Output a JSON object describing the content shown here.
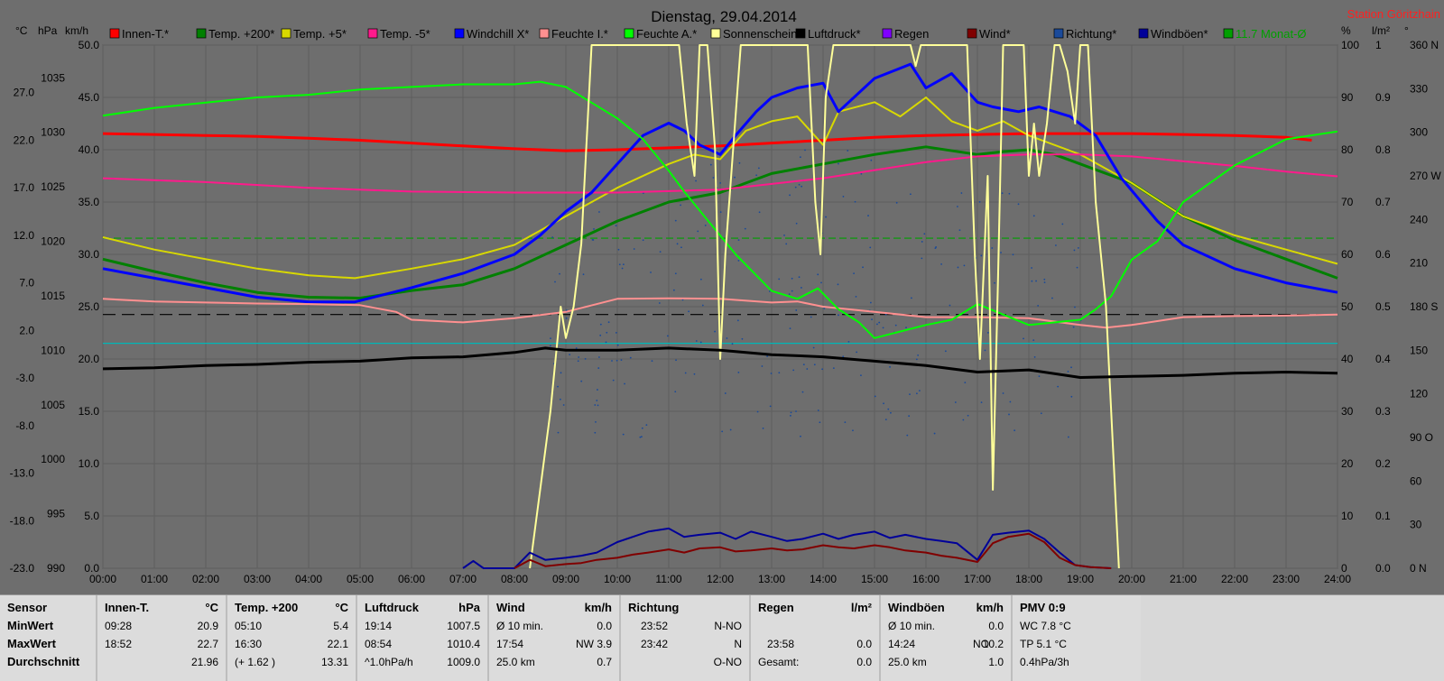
{
  "title": "Dienstag, 29.04.2014",
  "station": "Station Göritzhain",
  "axis_units": {
    "temp": "°C",
    "pressure": "hPa",
    "wind": "km/h",
    "percent": "%",
    "rain": "l/m²",
    "direction": "°"
  },
  "legend": [
    {
      "label": "Innen-T.*",
      "color": "#ff0000"
    },
    {
      "label": "Temp. +200*",
      "color": "#008000"
    },
    {
      "label": "Temp. +5*",
      "color": "#d8d800"
    },
    {
      "label": "Temp. -5*",
      "color": "#ff1a8c"
    },
    {
      "label": "Windchill X*",
      "color": "#0000ff"
    },
    {
      "label": "Feuchte I.*",
      "color": "#ff9090"
    },
    {
      "label": "Feuchte A.*",
      "color": "#00ff00"
    },
    {
      "label": "Sonnenschein",
      "color": "#ffff99"
    },
    {
      "label": "Luftdruck*",
      "color": "#000000"
    },
    {
      "label": "Regen",
      "color": "#8000ff"
    },
    {
      "label": "Wind*",
      "color": "#800000"
    },
    {
      "label": "Richtung*",
      "color": "#1a4a9a"
    },
    {
      "label": "Windböen*",
      "color": "#000099"
    },
    {
      "label": "11.7 Monat-Ø",
      "color": "#00a000"
    }
  ],
  "chart_data": {
    "type": "line",
    "title": "Dienstag, 29.04.2014",
    "x_ticks": [
      "00:00",
      "01:00",
      "02:00",
      "03:00",
      "04:00",
      "05:00",
      "06:00",
      "07:00",
      "08:00",
      "09:00",
      "10:00",
      "11:00",
      "12:00",
      "13:00",
      "14:00",
      "15:00",
      "16:00",
      "17:00",
      "18:00",
      "19:00",
      "20:00",
      "21:00",
      "22:00",
      "23:00",
      "24:00"
    ],
    "xlim": [
      0,
      24
    ],
    "axes": {
      "temp": {
        "ticks": [
          "27.0",
          "22.0",
          "17.0",
          "12.0",
          "7.0",
          "2.0",
          "-3.0",
          "-8.0",
          "-13.0",
          "-18.0",
          "-23.0"
        ],
        "range": [
          -23,
          32
        ]
      },
      "pressure": {
        "ticks": [
          "1035",
          "1030",
          "1025",
          "1020",
          "1015",
          "1010",
          "1005",
          "1000",
          "995",
          "990"
        ],
        "range": [
          990,
          1038
        ]
      },
      "wind": {
        "ticks": [
          "50.0",
          "45.0",
          "40.0",
          "35.0",
          "30.0",
          "25.0",
          "20.0",
          "15.0",
          "10.0",
          "5.0",
          "0.0"
        ],
        "range": [
          0,
          50
        ]
      },
      "percent": {
        "ticks": [
          "100",
          "90",
          "80",
          "70",
          "60",
          "50",
          "40",
          "30",
          "20",
          "10",
          "0"
        ],
        "range": [
          0,
          100
        ]
      },
      "rain": {
        "ticks": [
          "1",
          "0.9",
          "0.8",
          "0.7",
          "0.6",
          "0.5",
          "0.4",
          "0.3",
          "0.2",
          "0.1",
          "0.0"
        ],
        "range": [
          0,
          1
        ]
      },
      "direction": {
        "ticks": [
          "360 N",
          "330",
          "300",
          "270 W",
          "240",
          "210",
          "180 S",
          "150",
          "120",
          "90 O",
          "60",
          "30",
          "0 N"
        ],
        "range": [
          0,
          360
        ]
      }
    },
    "ref_lines": [
      {
        "axis": "temp",
        "value": 11.7,
        "color": "#00a000",
        "dash": "8,4"
      },
      {
        "axis": "percent",
        "value": 48.5,
        "color": "#000000",
        "dash": "14,7"
      },
      {
        "axis": "percent",
        "value": 43.0,
        "color": "#00b8b8",
        "dash": ""
      }
    ],
    "series": [
      {
        "name": "Innen-T.*",
        "axis": "temp",
        "color": "#ff0000",
        "width": 3,
        "x": [
          0,
          1,
          2,
          3,
          4,
          5,
          6,
          7,
          8,
          9,
          10,
          11,
          12,
          13,
          14,
          15,
          16,
          17,
          18,
          19,
          20,
          21,
          22,
          23,
          23.5
        ],
        "y": [
          22.7,
          22.6,
          22.5,
          22.4,
          22.2,
          22.0,
          21.7,
          21.4,
          21.1,
          20.9,
          21.0,
          21.2,
          21.4,
          21.7,
          22.0,
          22.3,
          22.5,
          22.6,
          22.7,
          22.7,
          22.7,
          22.6,
          22.5,
          22.3,
          22.0
        ]
      },
      {
        "name": "Temp. +200*",
        "axis": "temp",
        "color": "#008000",
        "width": 3,
        "x": [
          0,
          1,
          2,
          3,
          4,
          5,
          6,
          7,
          8,
          9,
          10,
          11,
          12,
          12.5,
          13,
          14,
          15,
          16,
          17,
          17.5,
          18,
          18.5,
          19,
          20,
          21,
          22,
          23,
          24
        ],
        "y": [
          9.5,
          8.2,
          7.0,
          6.0,
          5.5,
          5.4,
          6.2,
          6.8,
          8.5,
          11.0,
          13.5,
          15.5,
          16.5,
          17.5,
          18.5,
          19.5,
          20.5,
          21.3,
          20.5,
          20.8,
          21.0,
          20.5,
          19.5,
          17.5,
          14.0,
          11.5,
          9.5,
          7.5
        ]
      },
      {
        "name": "Temp. +5*",
        "axis": "temp",
        "color": "#d8d800",
        "width": 2,
        "x": [
          0,
          1,
          2,
          3,
          4,
          4.9,
          6,
          7,
          8,
          9,
          10,
          11,
          11.5,
          12,
          12.5,
          13,
          13.5,
          14,
          14.3,
          15,
          15.5,
          16,
          16.5,
          17,
          17.5,
          18,
          19,
          20,
          21,
          22,
          23,
          24
        ],
        "y": [
          11.8,
          10.5,
          9.5,
          8.5,
          7.8,
          7.5,
          8.5,
          9.5,
          11.0,
          14.0,
          17.0,
          19.5,
          20.5,
          20.0,
          23.0,
          24.0,
          24.5,
          21.5,
          25.0,
          26.0,
          24.5,
          26.5,
          24.0,
          23.0,
          24.0,
          22.5,
          20.5,
          17.5,
          14.0,
          12.0,
          10.5,
          9.0
        ]
      },
      {
        "name": "Temp. -5*",
        "axis": "temp",
        "color": "#ff1a8c",
        "width": 2,
        "x": [
          0,
          2,
          4,
          6,
          8,
          10,
          12,
          14,
          16,
          17,
          18,
          19,
          20,
          21,
          22,
          23,
          24
        ],
        "y": [
          18.0,
          17.6,
          17.0,
          16.6,
          16.5,
          16.5,
          16.8,
          18.0,
          19.7,
          20.3,
          20.5,
          20.5,
          20.3,
          19.8,
          19.3,
          18.7,
          18.2
        ]
      },
      {
        "name": "Windchill X*",
        "axis": "temp",
        "color": "#0000ff",
        "width": 3,
        "x": [
          0,
          1,
          2,
          3,
          4,
          4.9,
          6,
          7,
          8,
          8.5,
          9,
          9.5,
          10,
          10.5,
          11,
          11.3,
          11.6,
          12,
          12.3,
          12.7,
          13,
          13.5,
          14,
          14.3,
          15,
          15.7,
          16,
          16.5,
          17,
          17.3,
          17.8,
          18.2,
          18.8,
          19.3,
          19.8,
          20.5,
          21,
          22,
          23,
          24
        ],
        "y": [
          8.5,
          7.5,
          6.5,
          5.5,
          5.0,
          5.0,
          6.5,
          8.0,
          10.0,
          12.0,
          14.5,
          16.5,
          19.5,
          22.5,
          23.8,
          23.0,
          21.5,
          20.5,
          22.5,
          25.0,
          26.5,
          27.5,
          28.0,
          25.0,
          28.5,
          30.0,
          27.5,
          29.0,
          26.0,
          25.5,
          25.0,
          25.5,
          24.5,
          22.5,
          18.0,
          13.5,
          11.0,
          8.5,
          7.0,
          6.0
        ]
      },
      {
        "name": "Feuchte I.*",
        "axis": "percent",
        "color": "#ff9090",
        "width": 2,
        "x": [
          0,
          1,
          2,
          3,
          4,
          5,
          5.7,
          6,
          7,
          8,
          9,
          10,
          11,
          12,
          13,
          13.5,
          14,
          15,
          16,
          17,
          18,
          19,
          19.5,
          20,
          21,
          22,
          23,
          24
        ],
        "y": [
          51.5,
          51.0,
          50.8,
          50.6,
          50.5,
          50.3,
          49.0,
          47.5,
          47.0,
          47.8,
          49.0,
          51.5,
          51.6,
          51.5,
          50.8,
          51.0,
          50.0,
          49.0,
          48.0,
          48.0,
          47.8,
          46.5,
          46.0,
          46.5,
          48.0,
          48.2,
          48.3,
          48.5
        ]
      },
      {
        "name": "Feuchte A.*",
        "axis": "percent",
        "color": "#00ff00",
        "width": 2,
        "x": [
          0,
          1,
          2,
          3,
          4,
          5,
          6,
          7,
          8,
          8.5,
          9,
          9.5,
          10,
          10.5,
          11,
          11.3,
          11.8,
          12.3,
          13,
          13.5,
          13.9,
          14.3,
          14.7,
          15,
          16,
          16.5,
          17,
          17.5,
          18,
          19,
          19.3,
          19.6,
          20,
          20.5,
          21,
          22,
          23,
          24
        ],
        "y": [
          86.5,
          88.0,
          89.0,
          90.0,
          90.5,
          91.5,
          92.0,
          92.5,
          92.5,
          93.0,
          92.0,
          89.0,
          86.0,
          82.0,
          76.0,
          72.0,
          66.0,
          60.0,
          53.0,
          51.5,
          53.5,
          49.5,
          47.0,
          44.0,
          46.5,
          47.5,
          50.5,
          48.5,
          46.5,
          47.5,
          49.5,
          52.0,
          59.0,
          62.5,
          70.0,
          77.0,
          82.0,
          83.5
        ]
      },
      {
        "name": "Sonnenschein",
        "axis": "percent",
        "color": "#ffff99",
        "width": 2,
        "x": [
          8.3,
          8.7,
          8.9,
          9.0,
          9.15,
          9.3,
          9.5,
          9.6,
          10,
          11,
          11.2,
          11.35,
          11.5,
          11.6,
          11.75,
          11.9,
          12.0,
          12.1,
          12.25,
          12.4,
          13,
          13.7,
          13.85,
          13.95,
          14.05,
          14.2,
          15,
          15.7,
          15.8,
          15.9,
          16,
          16.8,
          16.95,
          17.05,
          17.2,
          17.3,
          17.4,
          17.5,
          17.7,
          17.9,
          18.0,
          18.1,
          18.2,
          18.35,
          18.5,
          18.6,
          18.75,
          18.9,
          19.0,
          19.15,
          19.3,
          19.5,
          19.75
        ],
        "y": [
          0,
          30,
          50,
          44,
          50,
          62,
          100,
          100,
          100,
          100,
          100,
          85,
          75,
          100,
          100,
          80,
          40,
          60,
          80,
          100,
          100,
          100,
          70,
          60,
          90,
          100,
          100,
          100,
          96,
          100,
          100,
          100,
          60,
          40,
          75,
          15,
          55,
          100,
          100,
          100,
          75,
          85,
          75,
          85,
          100,
          100,
          95,
          85,
          100,
          100,
          70,
          50,
          0
        ]
      },
      {
        "name": "Luftdruck*",
        "axis": "pressure",
        "color": "#000000",
        "width": 3,
        "x": [
          0,
          1,
          2,
          3,
          4,
          5,
          6,
          7,
          8,
          8.6,
          9,
          10,
          11,
          12,
          13,
          14,
          15,
          16,
          17,
          18,
          19,
          20,
          21,
          22,
          23,
          24
        ],
        "y": [
          1008.3,
          1008.4,
          1008.6,
          1008.7,
          1008.9,
          1009.0,
          1009.3,
          1009.4,
          1009.8,
          1010.2,
          1010.0,
          1010.0,
          1010.2,
          1010.0,
          1009.6,
          1009.4,
          1009.0,
          1008.6,
          1008.0,
          1008.2,
          1007.5,
          1007.6,
          1007.7,
          1007.9,
          1008.0,
          1007.9
        ]
      },
      {
        "name": "Windböen*",
        "axis": "wind",
        "color": "#000099",
        "width": 2,
        "x": [
          7.0,
          7.2,
          7.4,
          8.0,
          8.3,
          8.6,
          9.0,
          9.3,
          9.6,
          10.0,
          10.3,
          10.6,
          11.0,
          11.3,
          11.6,
          12.0,
          12.3,
          12.6,
          13.0,
          13.3,
          13.6,
          14.0,
          14.3,
          14.6,
          15.0,
          15.3,
          15.6,
          16.0,
          16.3,
          16.6,
          17.0,
          17.3,
          17.6,
          18.0,
          18.3,
          18.6,
          18.9,
          19.2,
          19.6
        ],
        "y": [
          0,
          0.7,
          0,
          0,
          1.5,
          0.8,
          1.0,
          1.2,
          1.5,
          2.5,
          3.0,
          3.5,
          3.8,
          3.0,
          3.2,
          3.4,
          2.8,
          3.5,
          3.0,
          2.6,
          2.8,
          3.3,
          2.8,
          3.2,
          3.5,
          2.9,
          3.2,
          2.8,
          2.6,
          2.4,
          0.8,
          3.2,
          3.4,
          3.6,
          2.8,
          1.5,
          0.3,
          0.1,
          0
        ]
      },
      {
        "name": "Wind*",
        "axis": "wind",
        "color": "#800000",
        "width": 2,
        "x": [
          8.0,
          8.3,
          8.6,
          9.0,
          9.3,
          9.6,
          10.0,
          10.3,
          10.6,
          11.0,
          11.3,
          11.6,
          12.0,
          12.3,
          12.6,
          13.0,
          13.3,
          13.6,
          14.0,
          14.3,
          14.6,
          15.0,
          15.3,
          15.6,
          16.0,
          16.3,
          16.6,
          17.0,
          17.3,
          17.6,
          18.0,
          18.3,
          18.6,
          18.9,
          19.2,
          19.6
        ],
        "y": [
          0,
          0.8,
          0.2,
          0.4,
          0.5,
          0.8,
          1.0,
          1.3,
          1.5,
          1.8,
          1.5,
          1.9,
          2.0,
          1.6,
          1.7,
          1.9,
          1.7,
          1.8,
          2.2,
          2.0,
          1.9,
          2.2,
          2.0,
          1.7,
          1.5,
          1.2,
          1.0,
          0.6,
          2.4,
          3.0,
          3.3,
          2.5,
          1.0,
          0.3,
          0.1,
          0
        ]
      }
    ]
  },
  "panel": {
    "sensor": {
      "title": "Sensor",
      "rows": [
        "MinWert",
        "MaxWert",
        "Durchschnitt"
      ]
    },
    "innen": {
      "title": "Innen-T.",
      "unit": "°C",
      "rows": [
        [
          "09:28",
          "20.9"
        ],
        [
          "18:52",
          "22.7"
        ],
        [
          "",
          "21.96"
        ]
      ]
    },
    "temp200": {
      "title": "Temp. +200",
      "unit": "°C",
      "rows": [
        [
          "05:10",
          "5.4"
        ],
        [
          "16:30",
          "22.1"
        ],
        [
          "(+ 1.62 )",
          "13.31"
        ]
      ]
    },
    "luftdruck": {
      "title": "Luftdruck",
      "unit": "hPa",
      "rows": [
        [
          "19:14",
          "1007.5"
        ],
        [
          "08:54",
          "1010.4"
        ],
        [
          "^1.0hPa/h",
          "1009.0"
        ]
      ]
    },
    "wind": {
      "title": "Wind",
      "unit": "km/h",
      "rows": [
        [
          "Ø 10 min.",
          "",
          "0.0"
        ],
        [
          "17:54",
          "NW",
          "3.9"
        ],
        [
          "25.0 km",
          "",
          "0.7"
        ]
      ]
    },
    "richtung": {
      "title": "Richtung",
      "unit": "",
      "rows": [
        [
          "23:52",
          "N-NO"
        ],
        [
          "23:42",
          "N"
        ],
        [
          "",
          "O-NO"
        ]
      ]
    },
    "regen": {
      "title": "Regen",
      "unit": "l/m²",
      "rows": [
        [
          "",
          ""
        ],
        [
          "23:58",
          "0.0"
        ],
        [
          "Gesamt:",
          "0.0"
        ]
      ]
    },
    "windboeen": {
      "title": "Windböen",
      "unit": "km/h",
      "rows": [
        [
          "Ø 10 min.",
          "",
          "0.0"
        ],
        [
          "14:24",
          "NO",
          "10.2"
        ],
        [
          "25.0 km",
          "",
          "1.0"
        ]
      ]
    },
    "pmv": {
      "title": "PMV 0:9",
      "rows": [
        "WC 7.8 °C",
        "TP 5.1 °C",
        "0.4hPa/3h"
      ]
    }
  }
}
